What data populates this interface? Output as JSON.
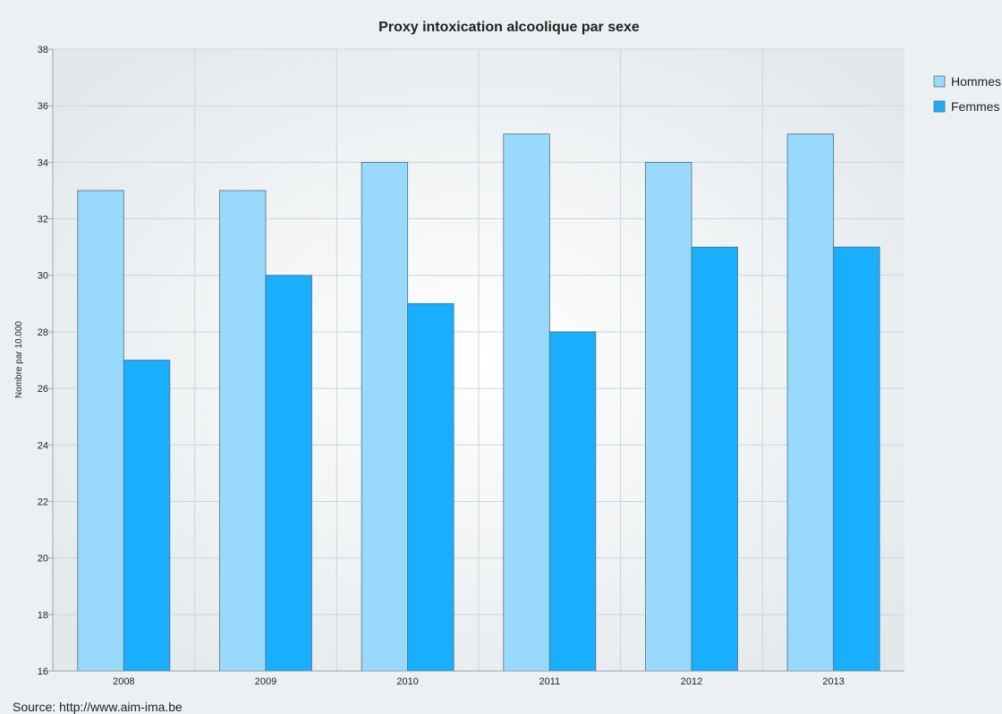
{
  "source_text": "Source: http://www.aim-ima.be",
  "colors": {
    "background": "#edf0f2",
    "grid": "#ccd4d9",
    "axis": "#9aa3a8",
    "hommes": "#99d9fc",
    "femmes": "#1aaefe",
    "bar_stroke": "#4a6f85",
    "text": "#222222"
  },
  "chart_data": {
    "type": "bar",
    "title": "Proxy intoxication alcoolique par sexe",
    "xlabel": "",
    "ylabel": "Nombre par 10.000",
    "categories": [
      "2008",
      "2009",
      "2010",
      "2011",
      "2012",
      "2013"
    ],
    "series": [
      {
        "name": "Hommes",
        "values": [
          33,
          33,
          34,
          35,
          34,
          35
        ]
      },
      {
        "name": "Femmes",
        "values": [
          27,
          30,
          29,
          28,
          31,
          31
        ]
      }
    ],
    "ylim": [
      16,
      38
    ],
    "yticks": [
      16,
      18,
      20,
      22,
      24,
      26,
      28,
      30,
      32,
      34,
      36,
      38
    ],
    "grid": true,
    "legend_position": "top-right"
  }
}
